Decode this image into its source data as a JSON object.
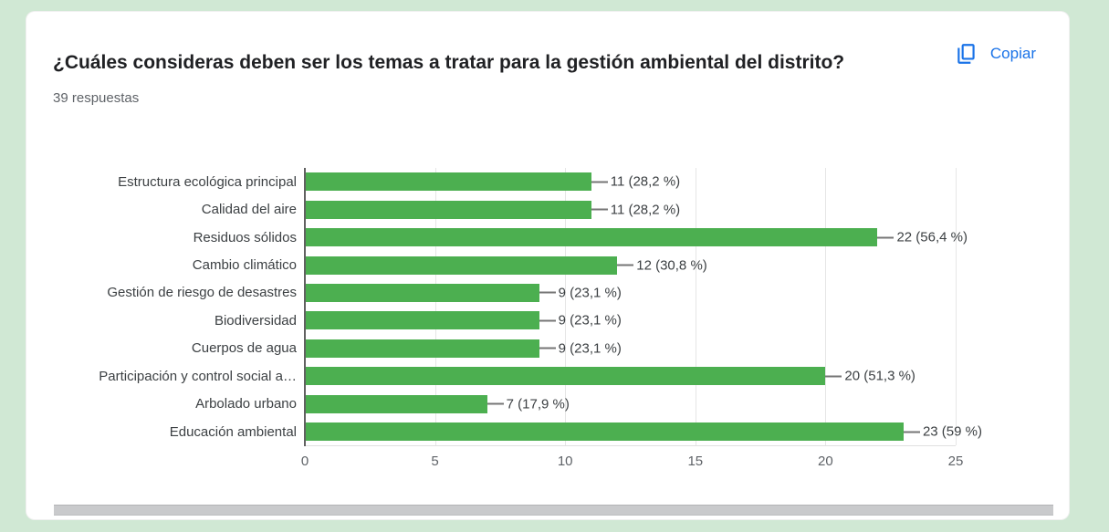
{
  "page": {
    "background_color": "#d0e8d4"
  },
  "card": {
    "title": "¿Cuáles consideras deben ser los temas a tratar para la gestión ambiental del distrito?",
    "responses_label": "39 respuestas",
    "copy_label": "Copiar",
    "accent_blue": "#1a73e8"
  },
  "chart_data": {
    "type": "bar",
    "orientation": "horizontal",
    "bar_color": "#4caf50",
    "grid": true,
    "legend": "none",
    "xlim": [
      0,
      25
    ],
    "x_ticks": [
      "0",
      "5",
      "10",
      "15",
      "20",
      "25"
    ],
    "categories": [
      "Estructura ecológica principal",
      "Calidad del aire",
      "Residuos sólidos",
      "Cambio climático",
      "Gestión de riesgo de desastres",
      "Biodiversidad",
      "Cuerpos de agua",
      "Participación y control social a…",
      "Arbolado urbano",
      "Educación ambiental"
    ],
    "values": [
      11,
      11,
      22,
      12,
      9,
      9,
      9,
      20,
      7,
      23
    ],
    "value_labels": [
      "11 (28,2 %)",
      "11 (28,2 %)",
      "22 (56,4 %)",
      "12 (30,8 %)",
      "9 (23,1 %)",
      "9 (23,1 %)",
      "9 (23,1 %)",
      "20 (51,3 %)",
      "7 (17,9 %)",
      "23 (59 %)"
    ]
  }
}
